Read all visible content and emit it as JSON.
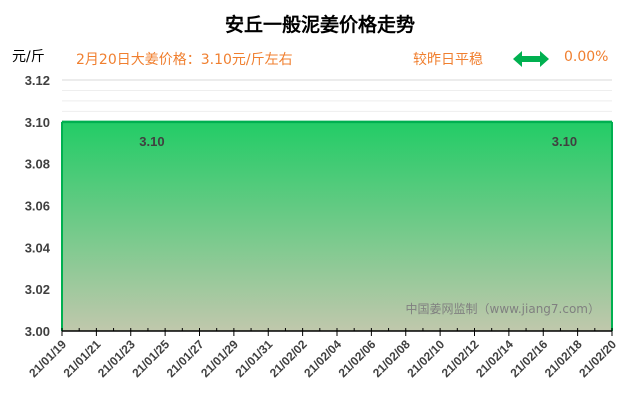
{
  "chart_data": {
    "type": "area",
    "title": "安丘一般泥姜价格走势",
    "ylabel": "元/斤",
    "ylim": [
      3.0,
      3.12
    ],
    "yticks": [
      "3.00",
      "3.02",
      "3.04",
      "3.06",
      "3.08",
      "3.10",
      "3.12"
    ],
    "x": [
      "21/01/19",
      "21/01/20",
      "21/01/21",
      "21/01/22",
      "21/01/23",
      "21/01/24",
      "21/01/25",
      "21/01/26",
      "21/01/27",
      "21/01/28",
      "21/01/29",
      "21/01/30",
      "21/01/31",
      "21/02/01",
      "21/02/02",
      "21/02/03",
      "21/02/04",
      "21/02/05",
      "21/02/06",
      "21/02/07",
      "21/02/08",
      "21/02/09",
      "21/02/10",
      "21/02/11",
      "21/02/12",
      "21/02/13",
      "21/02/14",
      "21/02/15",
      "21/02/16",
      "21/02/17",
      "21/02/18",
      "21/02/19",
      "21/02/20"
    ],
    "xtick_labels": [
      "21/01/19",
      "21/01/21",
      "21/01/23",
      "21/01/25",
      "21/01/27",
      "21/01/29",
      "21/01/31",
      "21/02/02",
      "21/02/04",
      "21/02/06",
      "21/02/08",
      "21/02/10",
      "21/02/12",
      "21/02/14",
      "21/02/16",
      "21/02/18",
      "21/02/20"
    ],
    "values": [
      3.1,
      3.1,
      3.1,
      3.1,
      3.1,
      3.1,
      3.1,
      3.1,
      3.1,
      3.1,
      3.1,
      3.1,
      3.1,
      3.1,
      3.1,
      3.1,
      3.1,
      3.1,
      3.1,
      3.1,
      3.1,
      3.1,
      3.1,
      3.1,
      3.1,
      3.1,
      3.1,
      3.1,
      3.1,
      3.1,
      3.1,
      3.1,
      3.1
    ],
    "data_labels": [
      {
        "x": "21/01/24",
        "text": "3.10"
      },
      {
        "x": "21/02/17",
        "text": "3.10"
      }
    ],
    "grid": true,
    "colors": {
      "line": "#00b050",
      "fill_top": "#22cc66",
      "fill_bottom": "#c0c8ac",
      "accent": "#f07f2f"
    }
  },
  "header": {
    "price_text": "2月20日大姜价格：3.10元/斤左右",
    "change_text": "较昨日平稳",
    "change_icon": "double-arrow-icon",
    "change_pct": "0.00%"
  },
  "watermark": "中国姜网监制（www.jiang7.com）"
}
